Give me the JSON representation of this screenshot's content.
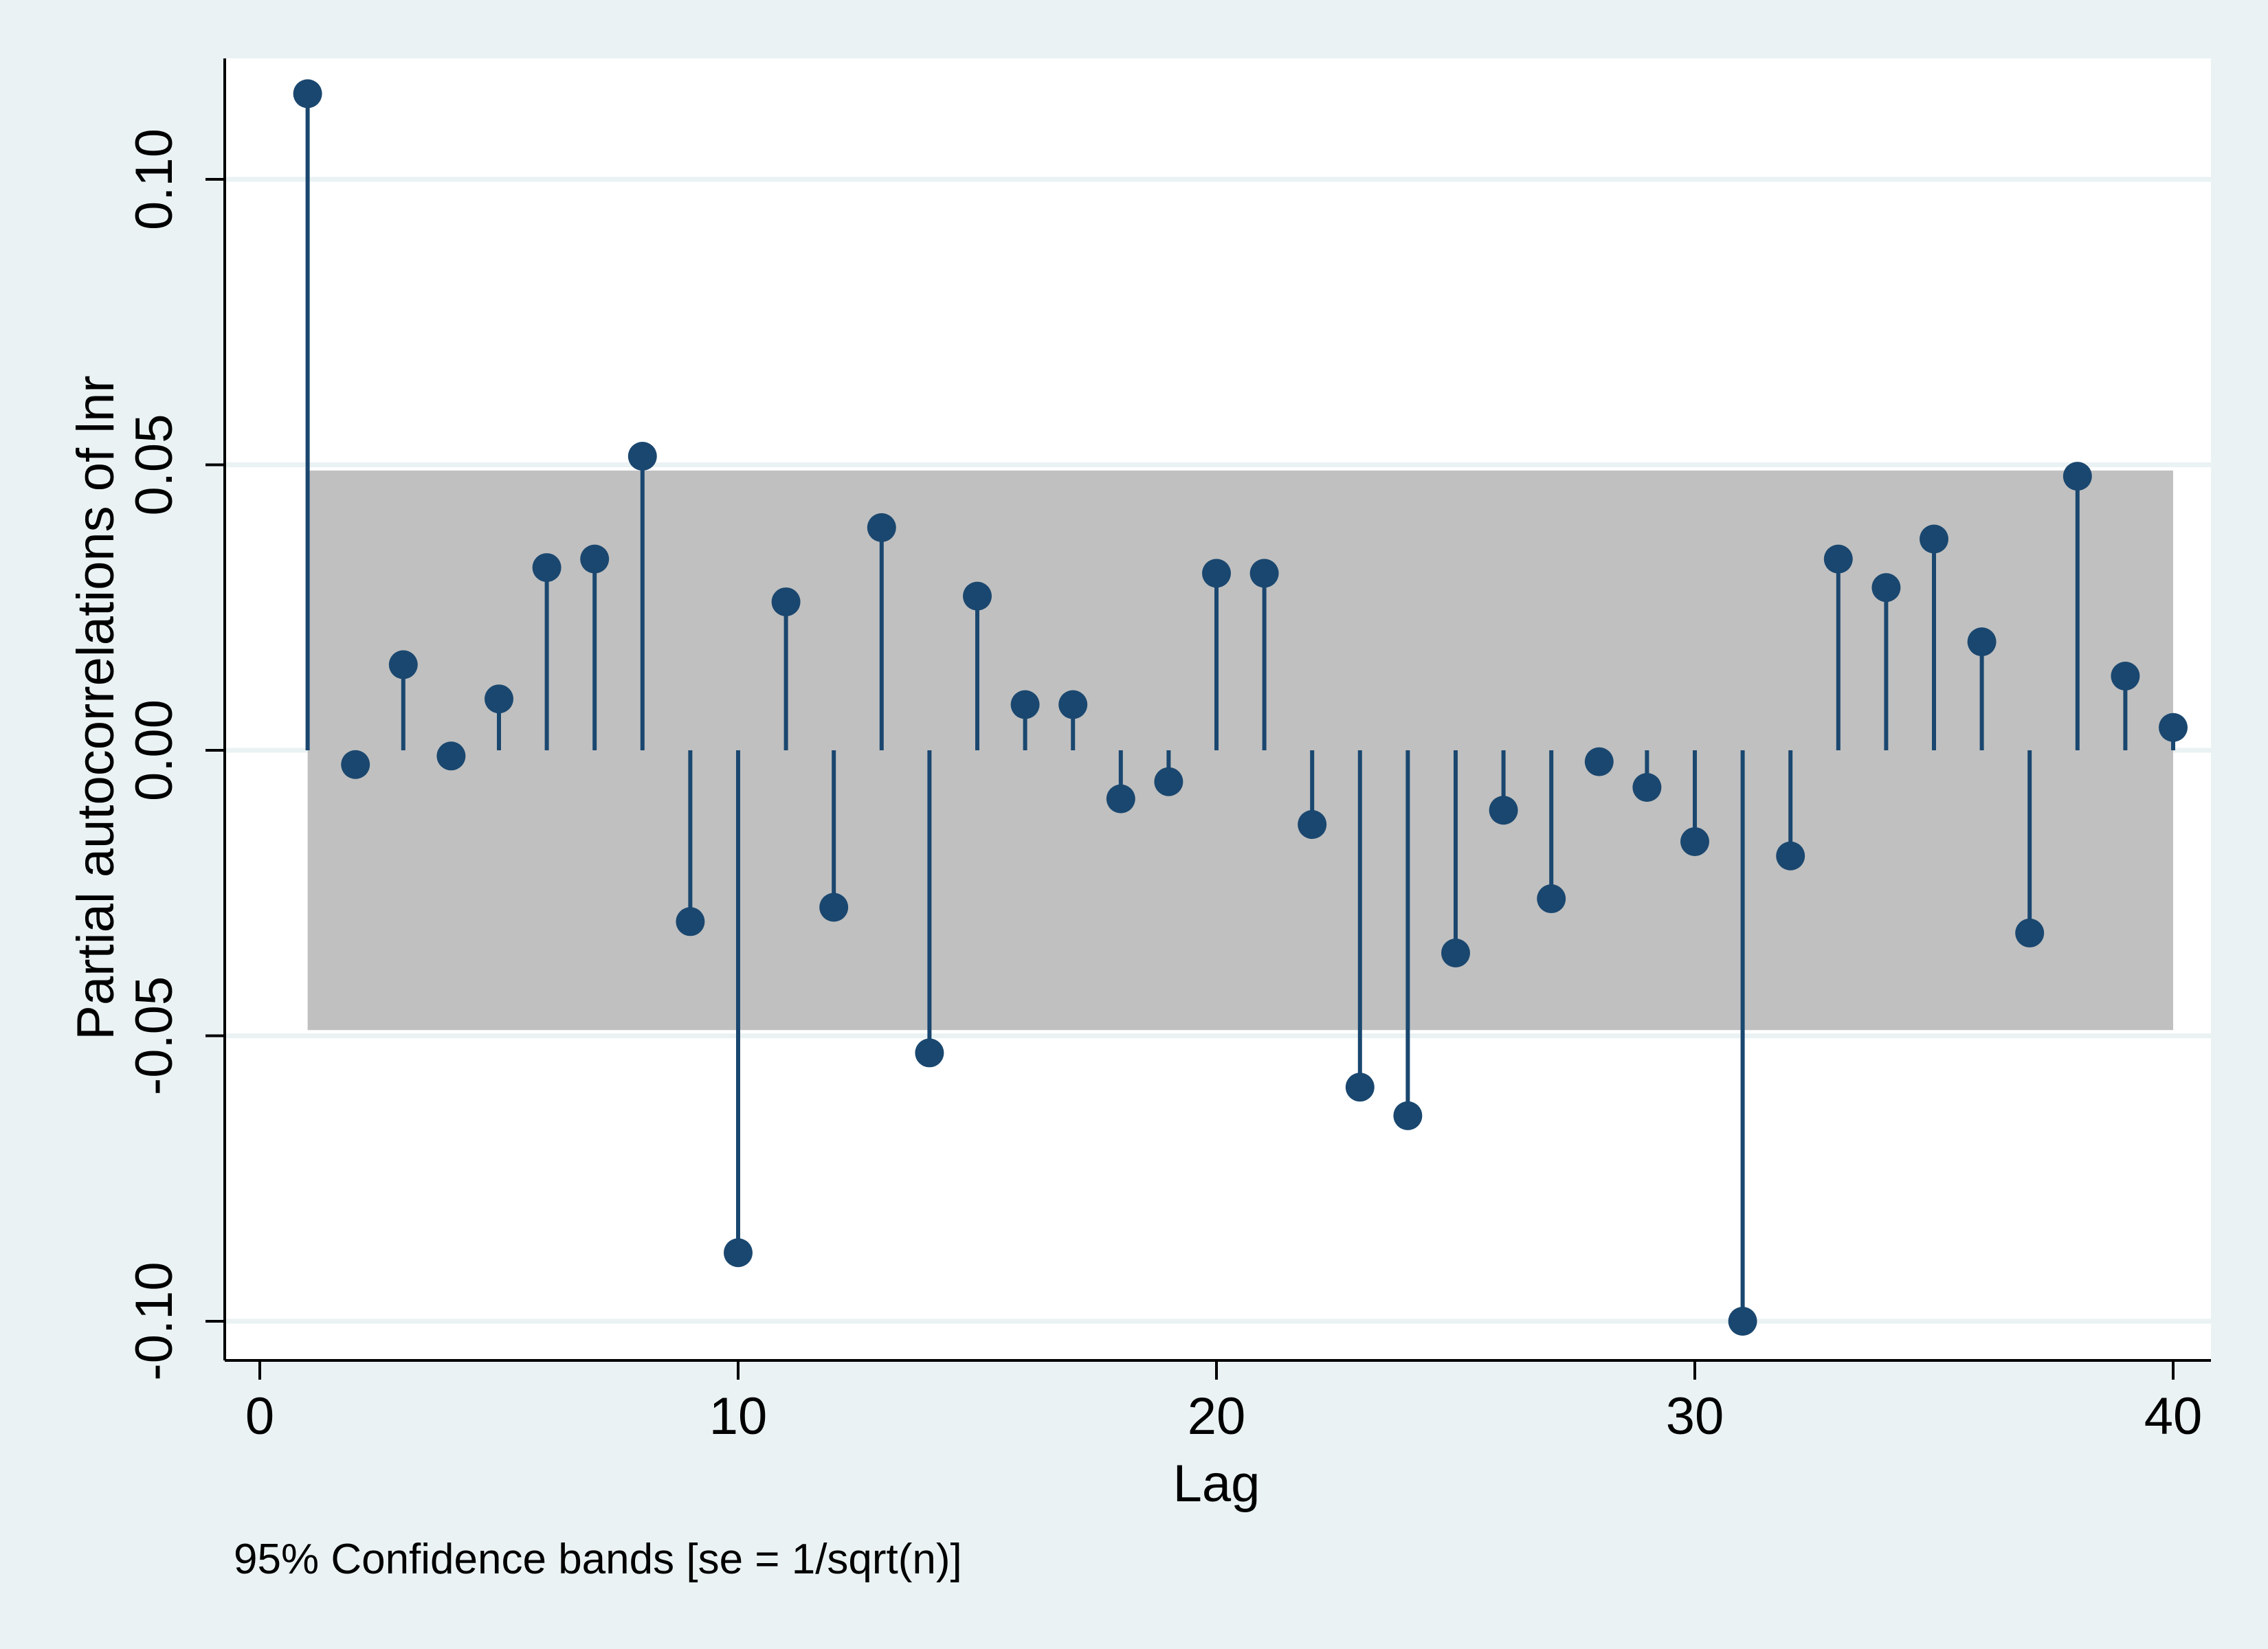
{
  "chart_data": {
    "type": "scatter",
    "subtype": "stem",
    "xlabel": "Lag",
    "ylabel": "Partial autocorrelations of lnr",
    "note": "95% Confidence bands [se = 1/sqrt(n)]",
    "xlim": [
      0,
      40
    ],
    "ylim": [
      -0.1,
      0.12
    ],
    "xticks": [
      0,
      10,
      20,
      30,
      40
    ],
    "xtick_labels": [
      "0",
      "10",
      "20",
      "30",
      "40"
    ],
    "yticks": [
      -0.1,
      -0.05,
      0.0,
      0.05,
      0.1
    ],
    "ytick_labels": [
      "-0.10",
      "-0.05",
      "0.00",
      "0.05",
      "0.10"
    ],
    "grid": true,
    "legend": "none",
    "confidence_band": {
      "upper": 0.049,
      "lower": -0.049,
      "x_start": 1,
      "x_end": 40
    },
    "colors": {
      "marker": "#1a476f",
      "band": "#c0c0c0",
      "plot_background": "#ffffff",
      "outer_background": "#eaf2f3",
      "gridline": "#eaf2f3"
    },
    "x": [
      1,
      2,
      3,
      4,
      5,
      6,
      7,
      8,
      9,
      10,
      11,
      12,
      13,
      14,
      15,
      16,
      17,
      18,
      19,
      20,
      21,
      22,
      23,
      24,
      25,
      26,
      27,
      28,
      29,
      30,
      31,
      32,
      33,
      34,
      35,
      36,
      37,
      38,
      39,
      40
    ],
    "y": [
      0.115,
      -0.0025,
      0.015,
      -0.001,
      0.009,
      0.032,
      0.0335,
      0.0515,
      -0.03,
      -0.088,
      0.026,
      -0.0275,
      0.039,
      -0.053,
      0.027,
      0.008,
      0.008,
      -0.0085,
      -0.0055,
      0.031,
      0.031,
      -0.013,
      -0.059,
      -0.064,
      -0.0355,
      -0.0105,
      -0.026,
      -0.002,
      -0.0065,
      -0.016,
      -0.1,
      -0.0185,
      0.0335,
      0.0285,
      0.037,
      0.019,
      -0.032,
      0.048,
      0.013,
      0.004
    ]
  }
}
